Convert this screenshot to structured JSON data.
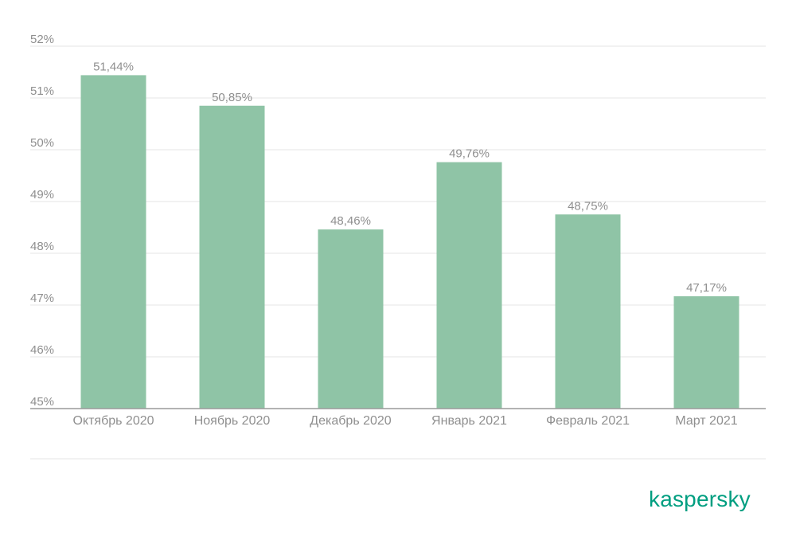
{
  "colors": {
    "bar": "#8fc4a6",
    "grid": "#e6e6e6",
    "axis": "#9a9a9a",
    "text": "#8f8f8f",
    "brand": "#009e80"
  },
  "brand": {
    "logo_text": "kaspersky"
  },
  "chart_data": {
    "type": "bar",
    "categories": [
      "Октябрь 2020",
      "Ноябрь 2020",
      "Декабрь 2020",
      "Январь 2021",
      "Февраль 2021",
      "Март 2021"
    ],
    "values": [
      51.44,
      50.85,
      48.46,
      49.76,
      48.75,
      47.17
    ],
    "data_labels": [
      "51,44%",
      "50,85%",
      "48,46%",
      "49,76%",
      "48,75%",
      "47,17%"
    ],
    "ylim": [
      45,
      52
    ],
    "yticks": [
      45,
      46,
      47,
      48,
      49,
      50,
      51,
      52
    ],
    "ytick_labels": [
      "45%",
      "46%",
      "47%",
      "48%",
      "49%",
      "50%",
      "51%",
      "52%"
    ],
    "grid": true,
    "legend": "none",
    "title": "",
    "xlabel": "",
    "ylabel": ""
  }
}
